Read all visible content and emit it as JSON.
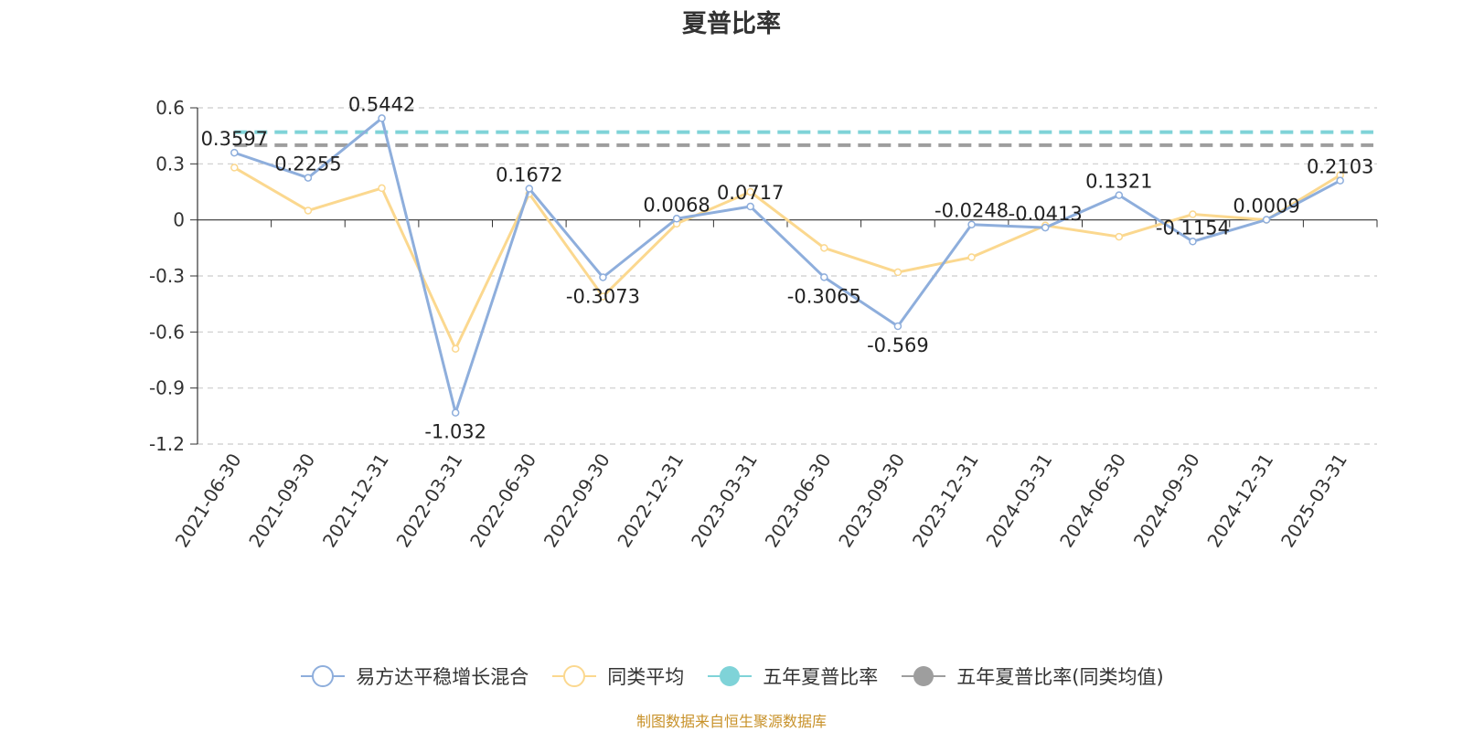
{
  "chart_data": {
    "type": "line",
    "title": "夏普比率",
    "categories": [
      "2021-06-30",
      "2021-09-30",
      "2021-12-31",
      "2022-03-31",
      "2022-06-30",
      "2022-09-30",
      "2022-12-31",
      "2023-03-31",
      "2023-06-30",
      "2023-09-30",
      "2023-12-31",
      "2024-03-31",
      "2024-06-30",
      "2024-09-30",
      "2024-12-31",
      "2025-03-31"
    ],
    "yticks": [
      "0.6",
      "0.3",
      "0",
      "-0.3",
      "-0.6",
      "-0.9",
      "-1.2"
    ],
    "ylim": [
      -1.2,
      0.6
    ],
    "grid": true,
    "legend_position": "bottom",
    "series": [
      {
        "name": "易方达平稳增长混合",
        "color": "#8eaedc",
        "show_labels": true,
        "values": [
          0.3597,
          0.2255,
          0.5442,
          -1.032,
          0.1672,
          -0.3073,
          0.0068,
          0.0717,
          -0.3065,
          -0.569,
          -0.0248,
          -0.0413,
          0.1321,
          -0.1154,
          0.0009,
          0.2103
        ],
        "labels": [
          "0.3597",
          "0.2255",
          "0.5442",
          "-1.032",
          "0.1672",
          "-0.3073",
          "0.0068",
          "0.0717",
          "-0.3065",
          "-0.569",
          "-0.0248",
          "-0.0413",
          "0.1321",
          "-0.1154",
          "0.0009",
          "0.2103"
        ]
      },
      {
        "name": "同类平均",
        "color": "#fbd88f",
        "show_labels": false,
        "values": [
          0.28,
          0.05,
          0.17,
          -0.69,
          0.14,
          -0.41,
          -0.02,
          0.15,
          -0.15,
          -0.28,
          -0.2,
          -0.03,
          -0.09,
          0.03,
          0.0,
          0.24
        ]
      },
      {
        "name": "五年夏普比率",
        "color": "#7fd3d8",
        "style": "dashed",
        "value": 0.47
      },
      {
        "name": "五年夏普比率(同类均值)",
        "color": "#9e9e9e",
        "style": "dashed",
        "value": 0.4
      }
    ]
  },
  "footer": {
    "source": "制图数据来自恒生聚源数据库",
    "source_color": "#c8922a"
  }
}
